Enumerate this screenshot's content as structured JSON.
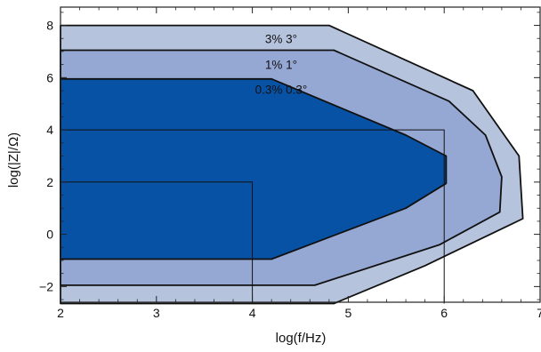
{
  "chart_data": {
    "type": "area",
    "title": "",
    "xlabel": "log(f/Hz)",
    "ylabel": "log(|Z|/Ω)",
    "xlim": [
      2,
      7
    ],
    "ylim": [
      -2.6,
      8.7
    ],
    "xticks": [
      2,
      3,
      4,
      5,
      6,
      7
    ],
    "yticks": [
      -2,
      0,
      2,
      4,
      6,
      8
    ],
    "xtick_labels": [
      "2",
      "3",
      "4",
      "5",
      "6",
      "7"
    ],
    "ytick_labels": [
      "−2",
      "0",
      "2",
      "4",
      "6",
      "8"
    ],
    "grid": false,
    "regions": [
      {
        "label": "3% 3°",
        "color": "#b5c3dd",
        "label_at": [
          4.3,
          7.5
        ],
        "polygon": [
          [
            2,
            8
          ],
          [
            4.8,
            8
          ],
          [
            6.3,
            5.5
          ],
          [
            6.78,
            3
          ],
          [
            6.82,
            0.6
          ],
          [
            5.8,
            -1.2
          ],
          [
            4.85,
            -2.65
          ],
          [
            2,
            -2.65
          ]
        ]
      },
      {
        "label": "1% 1°",
        "color": "#95a7d3",
        "label_at": [
          4.3,
          6.5
        ],
        "polygon": [
          [
            2,
            7.05
          ],
          [
            4.85,
            7.05
          ],
          [
            6.05,
            5.1
          ],
          [
            6.43,
            3.8
          ],
          [
            6.6,
            2.2
          ],
          [
            6.58,
            0.85
          ],
          [
            5.95,
            -0.4
          ],
          [
            4.65,
            -1.95
          ],
          [
            2,
            -1.95
          ]
        ]
      },
      {
        "label": "0.3% 0.3°",
        "color": "#0852a6",
        "label_at": [
          4.3,
          5.55
        ],
        "polygon": [
          [
            2,
            5.95
          ],
          [
            4.2,
            5.95
          ],
          [
            5.6,
            3.8
          ],
          [
            6.02,
            3
          ],
          [
            6.02,
            1.95
          ],
          [
            5.6,
            1
          ],
          [
            4.2,
            -0.95
          ],
          [
            2,
            -0.95
          ]
        ]
      }
    ],
    "reference_lines": [
      {
        "points": [
          [
            2,
            4
          ],
          [
            6,
            4
          ],
          [
            6,
            -2.65
          ]
        ]
      },
      {
        "points": [
          [
            2,
            2
          ],
          [
            4,
            2
          ],
          [
            4,
            -2.65
          ]
        ]
      }
    ]
  },
  "colors": {
    "outline": "#111111",
    "axis": "#222222"
  }
}
